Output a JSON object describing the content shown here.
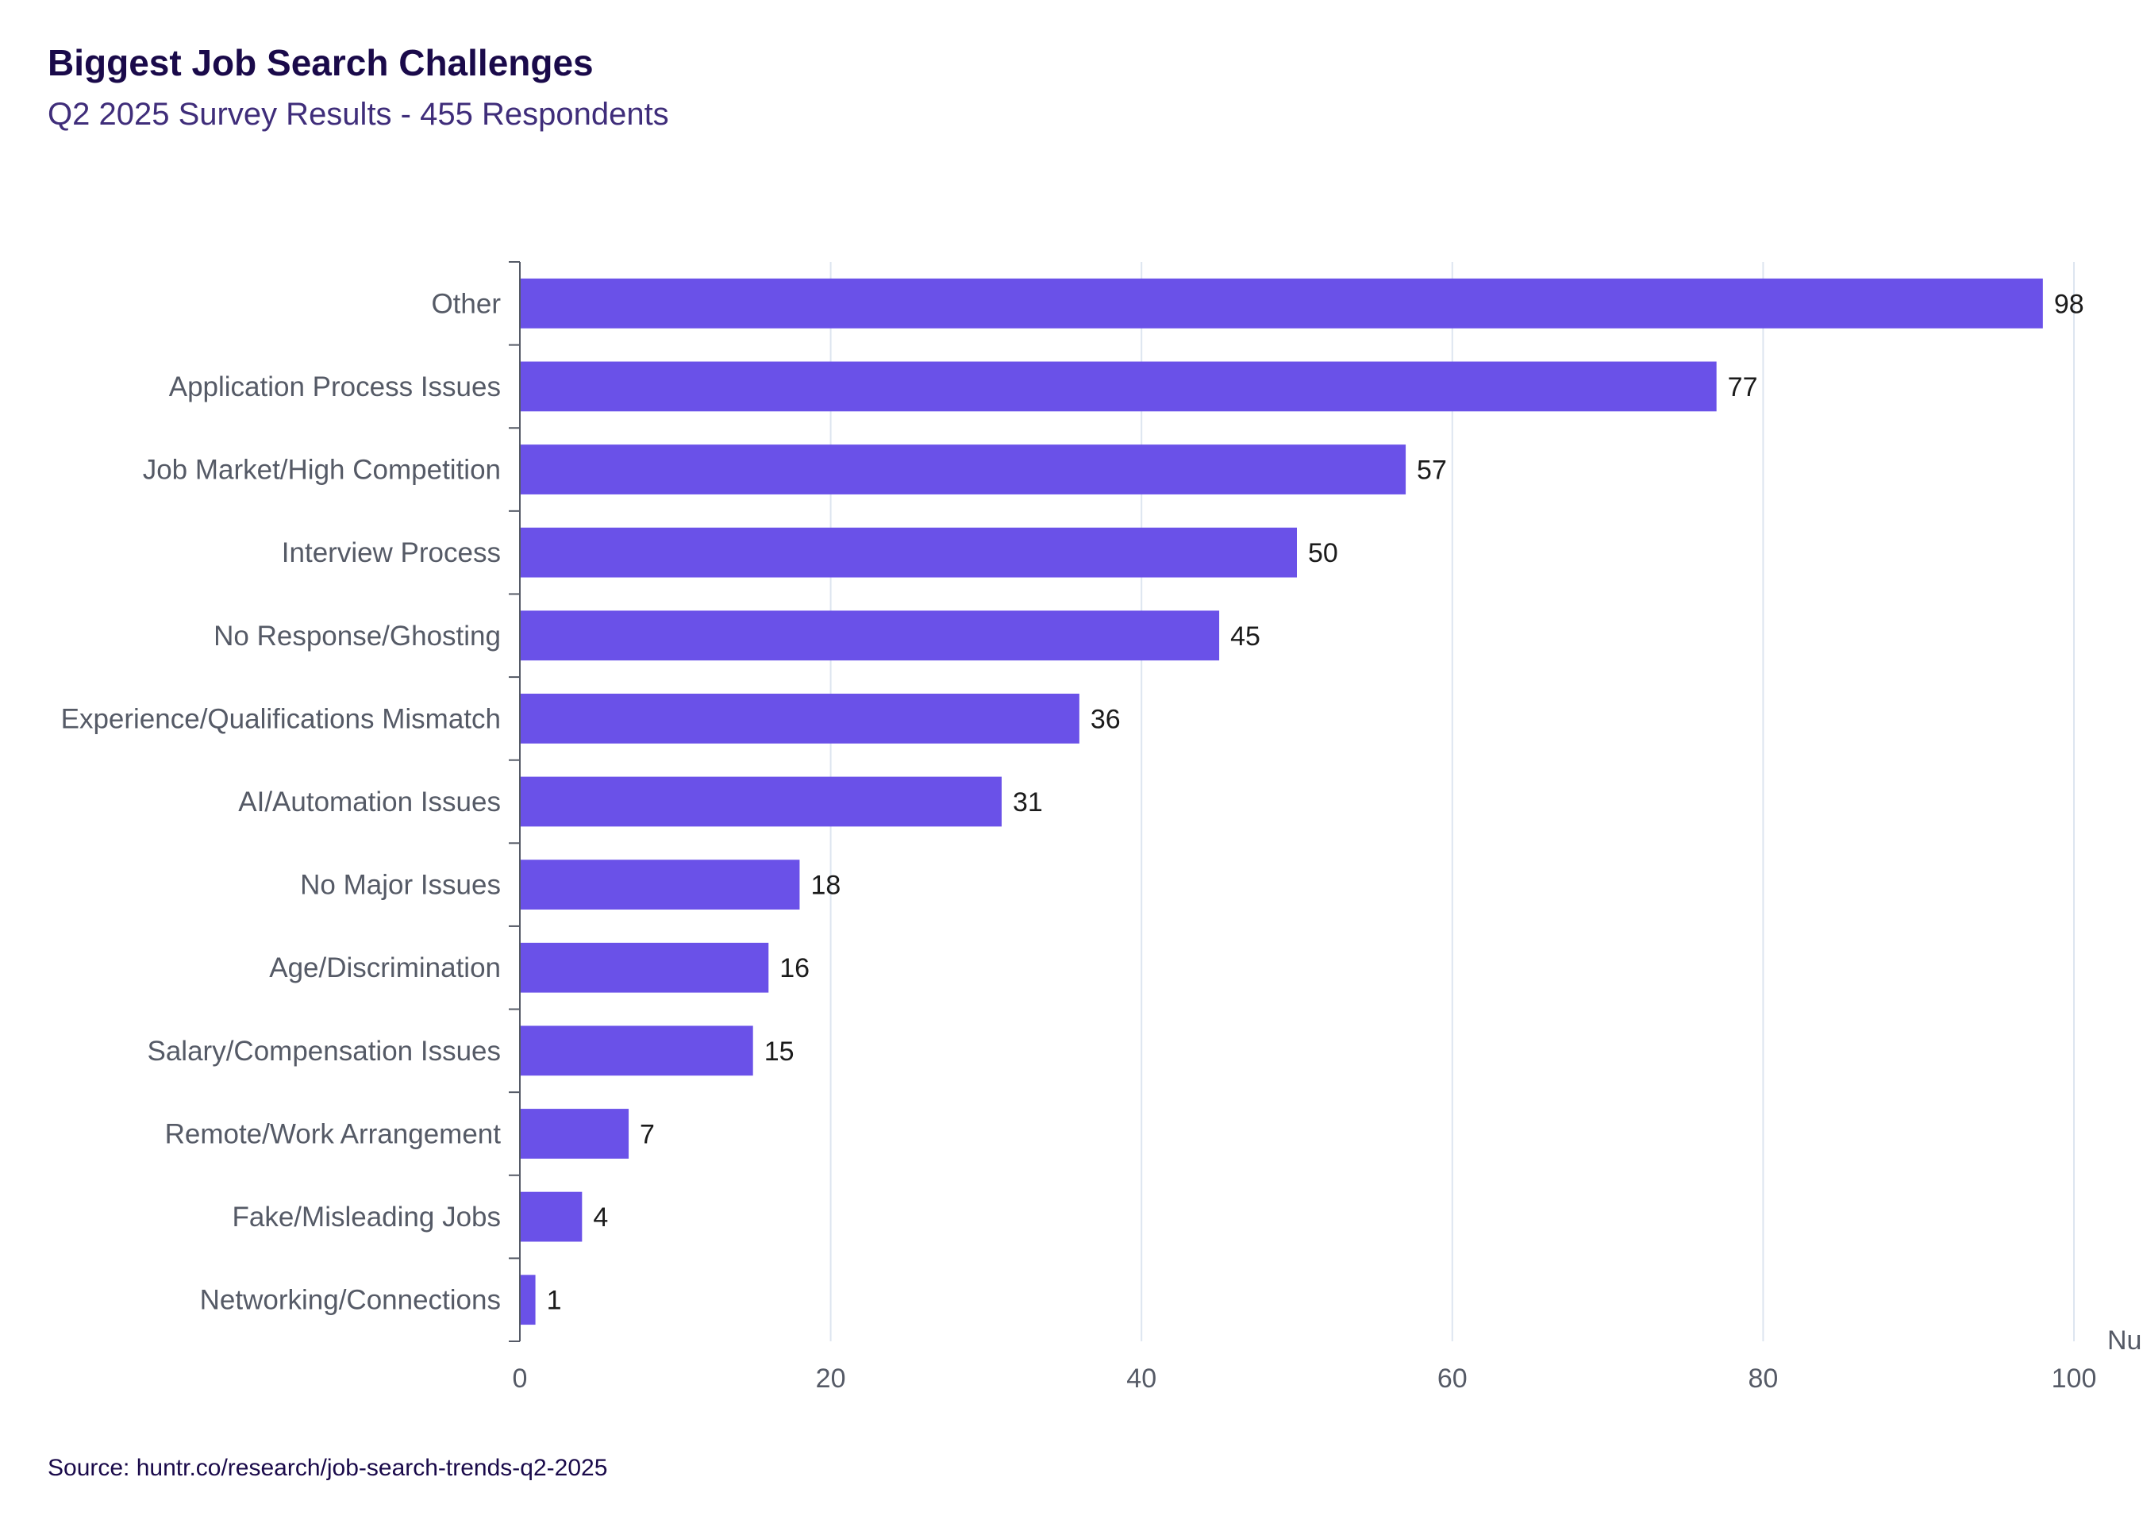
{
  "title": "Biggest Job Search Challenges",
  "subtitle": "Q2 2025 Survey Results - 455 Respondents",
  "source": "Source: huntr.co/research/job-search-trends-q2-2025",
  "colors": {
    "bar": "#6a51e8",
    "grid": "#dde5f0",
    "axis": "#555a66"
  },
  "chart_data": {
    "type": "bar",
    "orientation": "horizontal",
    "categories": [
      "Other",
      "Application Process Issues",
      "Job Market/High Competition",
      "Interview Process",
      "No Response/Ghosting",
      "Experience/Qualifications Mismatch",
      "AI/Automation Issues",
      "No Major Issues",
      "Age/Discrimination",
      "Salary/Compensation Issues",
      "Remote/Work Arrangement",
      "Fake/Misleading Jobs",
      "Networking/Connections"
    ],
    "values": [
      98,
      77,
      57,
      50,
      45,
      36,
      31,
      18,
      16,
      15,
      7,
      4,
      1
    ],
    "title": "Biggest Job Search Challenges",
    "subtitle": "Q2 2025 Survey Results - 455 Respondents",
    "xlabel": "Nu",
    "ylabel": "",
    "xlim": [
      0,
      100
    ],
    "xticks": [
      0,
      20,
      40,
      60,
      80,
      100
    ],
    "grid": "vertical",
    "data_labels": true
  }
}
